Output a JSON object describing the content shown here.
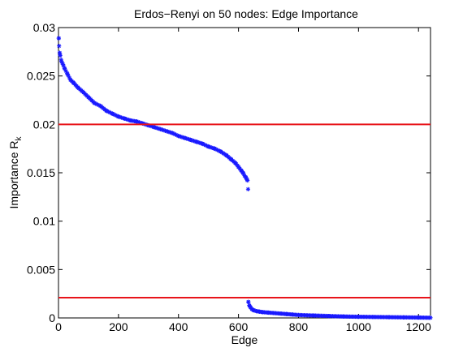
{
  "chart_data": {
    "type": "scatter",
    "title": "Erdos−Renyi on 50 nodes: Edge Importance",
    "xlabel": "Edge",
    "ylabel": "Importance R",
    "ylabel_subscript": "k",
    "xlim": [
      0,
      1240
    ],
    "ylim": [
      0,
      0.03
    ],
    "xticks": [
      0,
      200,
      400,
      600,
      800,
      1000,
      1200
    ],
    "yticks": [
      0,
      0.005,
      0.01,
      0.015,
      0.02,
      0.025,
      0.03
    ],
    "xtick_labels": [
      "0",
      "200",
      "400",
      "600",
      "800",
      "1000",
      "1200"
    ],
    "ytick_labels": [
      "0",
      "0.005",
      "0.01",
      "0.015",
      "0.02",
      "0.025",
      "0.03"
    ],
    "marker": "*",
    "series_color": "#1a1aff",
    "threshold_color": "#e8141a",
    "thresholds": [
      0.02,
      0.0021
    ],
    "grid": false,
    "upper_group": {
      "x": [
        1,
        2,
        4,
        6,
        10,
        15,
        20,
        30,
        40,
        50,
        65,
        80,
        100,
        120,
        140,
        160,
        180,
        200,
        220,
        240,
        260,
        280,
        300,
        320,
        340,
        360,
        380,
        400,
        420,
        440,
        460,
        480,
        500,
        520,
        540,
        560,
        575,
        590,
        600,
        610,
        615,
        620,
        625,
        628,
        630,
        632
      ],
      "y": [
        0.0289,
        0.0281,
        0.0274,
        0.0271,
        0.0265,
        0.0262,
        0.0258,
        0.0252,
        0.0246,
        0.0243,
        0.0238,
        0.0234,
        0.0228,
        0.0222,
        0.0219,
        0.0214,
        0.0211,
        0.0208,
        0.0206,
        0.0204,
        0.0203,
        0.0201,
        0.0199,
        0.0197,
        0.0195,
        0.0193,
        0.0191,
        0.0188,
        0.0186,
        0.0184,
        0.0182,
        0.018,
        0.0177,
        0.0175,
        0.0172,
        0.0168,
        0.0164,
        0.016,
        0.0156,
        0.0152,
        0.015,
        0.0147,
        0.0145,
        0.0143,
        0.0142,
        0.0133
      ]
    },
    "lower_group": {
      "x": [
        633,
        636,
        640,
        645,
        650,
        660,
        670,
        680,
        700,
        720,
        740,
        760,
        780,
        800,
        850,
        900,
        950,
        1000,
        1050,
        1100,
        1150,
        1200,
        1240
      ],
      "y": [
        0.00165,
        0.0013,
        0.0011,
        0.0009,
        0.0008,
        0.0007,
        0.00065,
        0.0006,
        0.00055,
        0.0005,
        0.00045,
        0.0004,
        0.00035,
        0.0003,
        0.00025,
        0.0002,
        0.00015,
        0.00012,
        0.0001,
        8e-05,
        6e-05,
        4e-05,
        2e-05
      ]
    }
  }
}
